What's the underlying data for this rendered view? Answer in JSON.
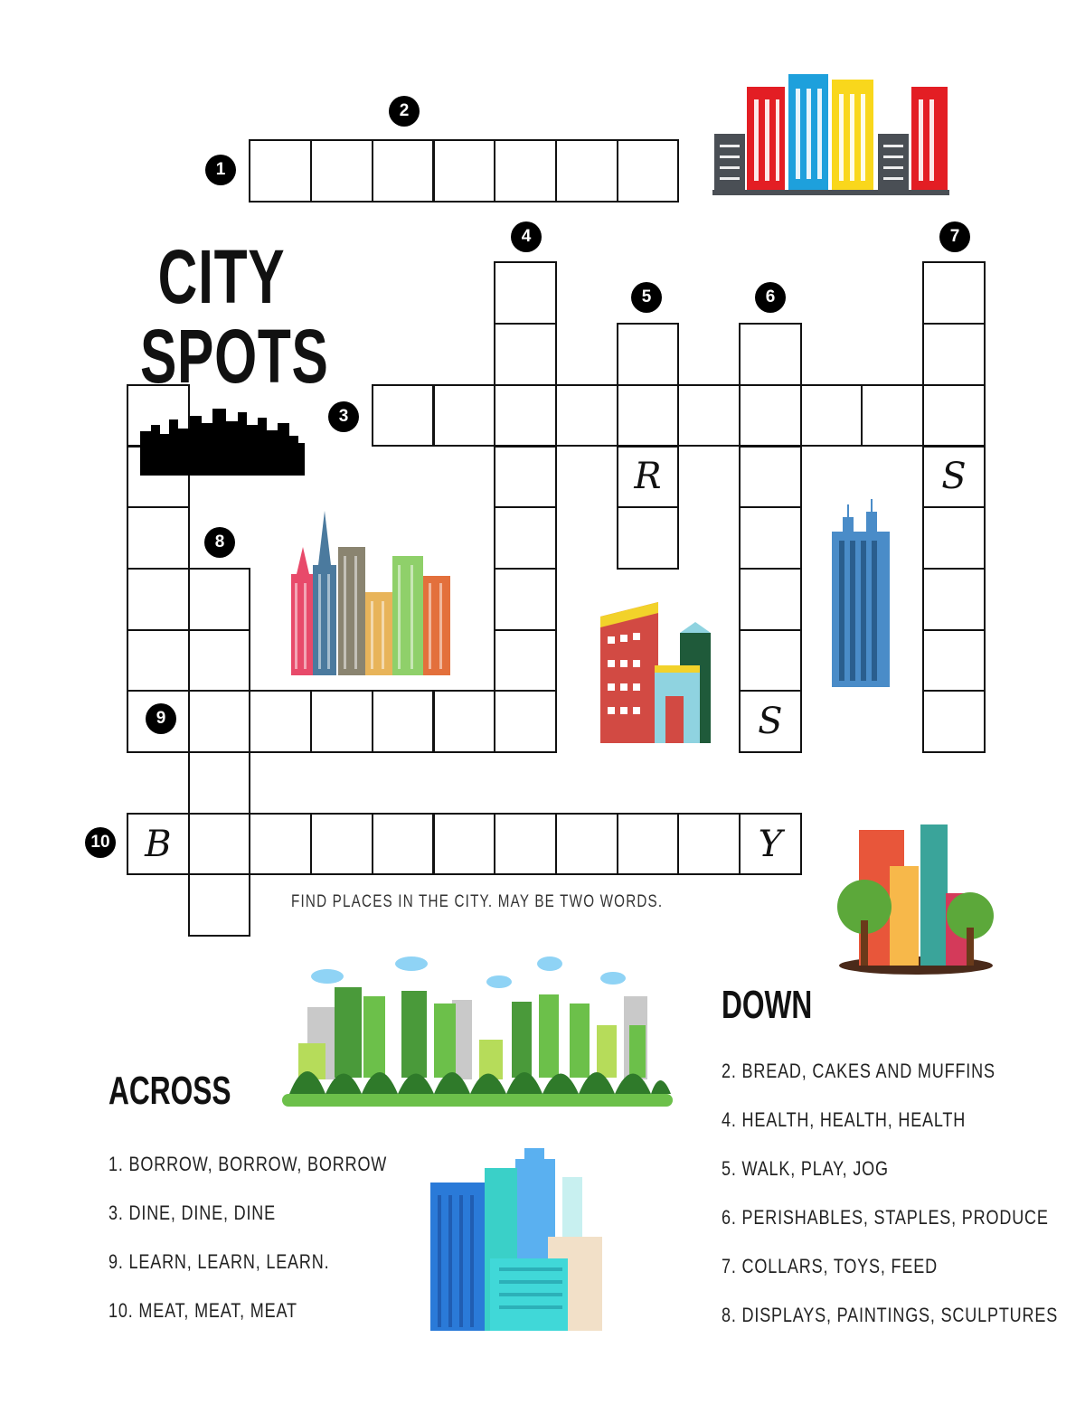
{
  "title": {
    "line1": "CITY",
    "line2": "SPOTS"
  },
  "instructions": "FIND PLACES IN THE CITY. MAY BE TWO WORDS.",
  "clue_numbers": [
    "1",
    "2",
    "3",
    "4",
    "5",
    "6",
    "7",
    "8",
    "9",
    "10"
  ],
  "given_letters": [
    "R",
    "S",
    "S",
    "B",
    "Y"
  ],
  "across": {
    "heading": "ACROSS",
    "clues": [
      "1. BORROW, BORROW, BORROW",
      "3. DINE, DINE, DINE",
      "9. LEARN, LEARN, LEARN.",
      "10. MEAT, MEAT, MEAT"
    ]
  },
  "down": {
    "heading": "DOWN",
    "clues": [
      "2. BREAD, CAKES AND MUFFINS",
      "4. HEALTH, HEALTH, HEALTH",
      "5. WALK, PLAY, JOG",
      "6. PERISHABLES, STAPLES, PRODUCE",
      "7. COLLARS, TOYS, FEED",
      "8. DISPLAYS, PAINTINGS, SCULPTURES"
    ]
  },
  "colors": {
    "red": "#e31e24",
    "blue": "#1ea0dc",
    "yellow": "#f9d71c",
    "gray": "#4a4f55",
    "green": "#6cc04a"
  }
}
